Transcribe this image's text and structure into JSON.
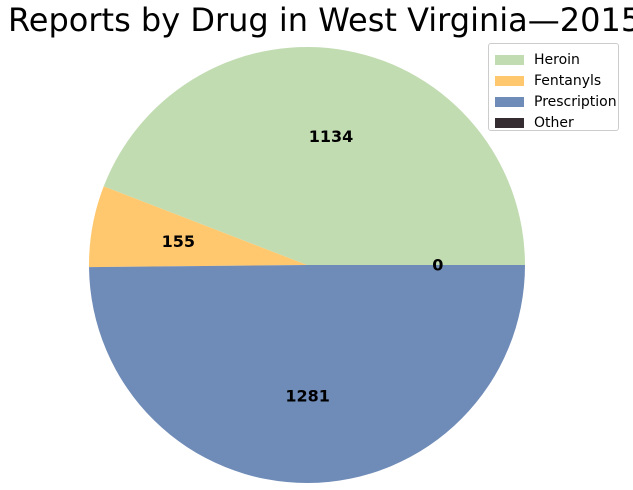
{
  "chart_data": {
    "type": "pie",
    "title": "Reports by Drug in West Virginia—2015",
    "slices": [
      {
        "label": "Heroin",
        "value": 1134,
        "color": "#c2dcb2"
      },
      {
        "label": "Fentanyls",
        "value": 155,
        "color": "#ffc86e"
      },
      {
        "label": "Prescription",
        "value": 1281,
        "color": "#6f8bb7"
      },
      {
        "label": "Other",
        "value": 0,
        "color": "#342c30"
      }
    ],
    "start_angle_deg": 0,
    "direction": "counterclockwise",
    "legend_position": "top-right"
  }
}
